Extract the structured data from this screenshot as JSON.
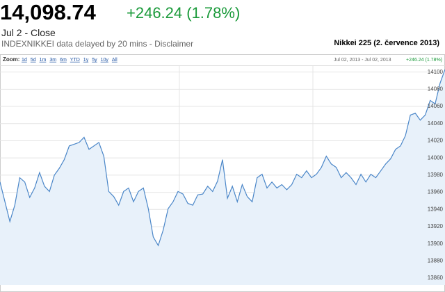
{
  "header": {
    "price": "14,098.74",
    "change": "+246.24 (1.78%)",
    "date": "Jul 2 - Close",
    "source": "INDEXNIKKEI data delayed by 20 mins - Disclaimer"
  },
  "chart_data": {
    "type": "area",
    "title": "Nikkei 225 (2. července 2013)",
    "zoom_label": "Zoom:",
    "zoom_options": [
      "1d",
      "5d",
      "1m",
      "3m",
      "6m",
      "YTD",
      "1y",
      "5y",
      "10y",
      "All"
    ],
    "range": "Jul 02, 2013 - Jul 02, 2013",
    "range_change": "+246.24 (1.78%)",
    "color": "#4a86c8",
    "fill": "#e8f1fa",
    "values": [
      13972,
      13949,
      13926,
      13945,
      13977,
      13972,
      13954,
      13965,
      13983,
      13967,
      13961,
      13980,
      13988,
      13998,
      14014,
      14016,
      14018,
      14024,
      14010,
      14014,
      14018,
      14002,
      13961,
      13955,
      13945,
      13961,
      13965,
      13949,
      13961,
      13965,
      13941,
      13908,
      13898,
      13916,
      13941,
      13949,
      13961,
      13958,
      13947,
      13945,
      13957,
      13958,
      13967,
      13961,
      13973,
      13998,
      13953,
      13967,
      13949,
      13969,
      13955,
      13949,
      13977,
      13981,
      13965,
      13972,
      13965,
      13969,
      13963,
      13969,
      13981,
      13977,
      13985,
      13977,
      13981,
      13989,
      14002,
      13993,
      13989,
      13977,
      13983,
      13977,
      13969,
      13981,
      13972,
      13981,
      13977,
      13985,
      13993,
      13999,
      14010,
      14014,
      14026,
      14050,
      14052,
      14044,
      14050,
      14067,
      14063,
      14087,
      14103
    ],
    "ylim": [
      13852,
      14107
    ],
    "yticks": [
      13860,
      13880,
      13900,
      13920,
      13940,
      13960,
      13980,
      14000,
      14020,
      14040,
      14060,
      14080,
      14100
    ],
    "grid": true
  }
}
